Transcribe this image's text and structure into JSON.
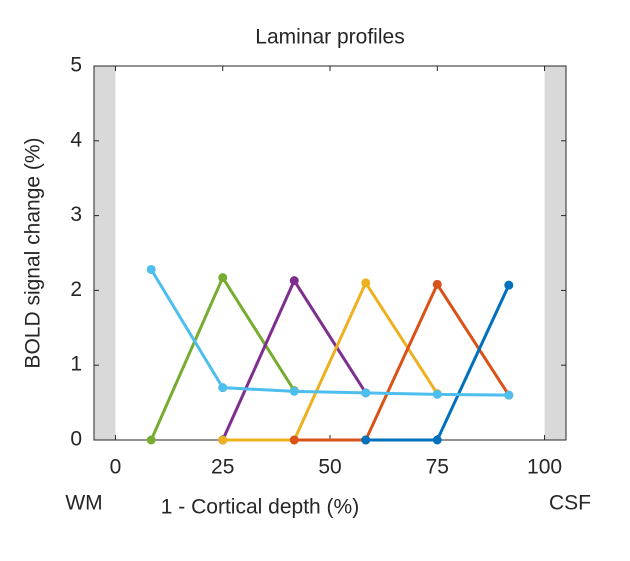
{
  "chart_data": {
    "type": "line",
    "title": "Laminar profiles",
    "x_label": "1 - Cortical depth (%)",
    "y_label": "BOLD signal change (%)",
    "left_region_label": "WM",
    "right_region_label": "CSF",
    "shaded_regions": [
      [
        -5,
        0
      ],
      [
        100,
        105
      ]
    ],
    "shade_color": "#d9d9d9",
    "x": [
      8.33,
      25,
      41.67,
      58.33,
      75,
      91.67
    ],
    "series": [
      {
        "color": "#77AC30",
        "values": [
          0,
          2.17,
          0.66,
          null,
          null,
          null
        ]
      },
      {
        "color": "#7E2F8E",
        "values": [
          null,
          0,
          2.13,
          0.63,
          null,
          null
        ]
      },
      {
        "color": "#EDB120",
        "values": [
          null,
          0,
          0,
          2.1,
          0.62,
          null
        ]
      },
      {
        "color": "#D95319",
        "values": [
          null,
          null,
          0,
          0,
          2.08,
          0.6
        ]
      },
      {
        "color": "#0072BD",
        "values": [
          null,
          null,
          null,
          0,
          0,
          2.07
        ]
      },
      {
        "color": "#4DBEEE",
        "values": [
          2.28,
          0.7,
          0.65,
          0.63,
          0.61,
          0.6
        ]
      }
    ],
    "xlim": [
      -5,
      105
    ],
    "ylim": [
      0,
      5
    ],
    "xticks": [
      0,
      25,
      50,
      75,
      100
    ],
    "yticks": [
      0,
      1,
      2,
      3,
      4,
      5
    ]
  }
}
